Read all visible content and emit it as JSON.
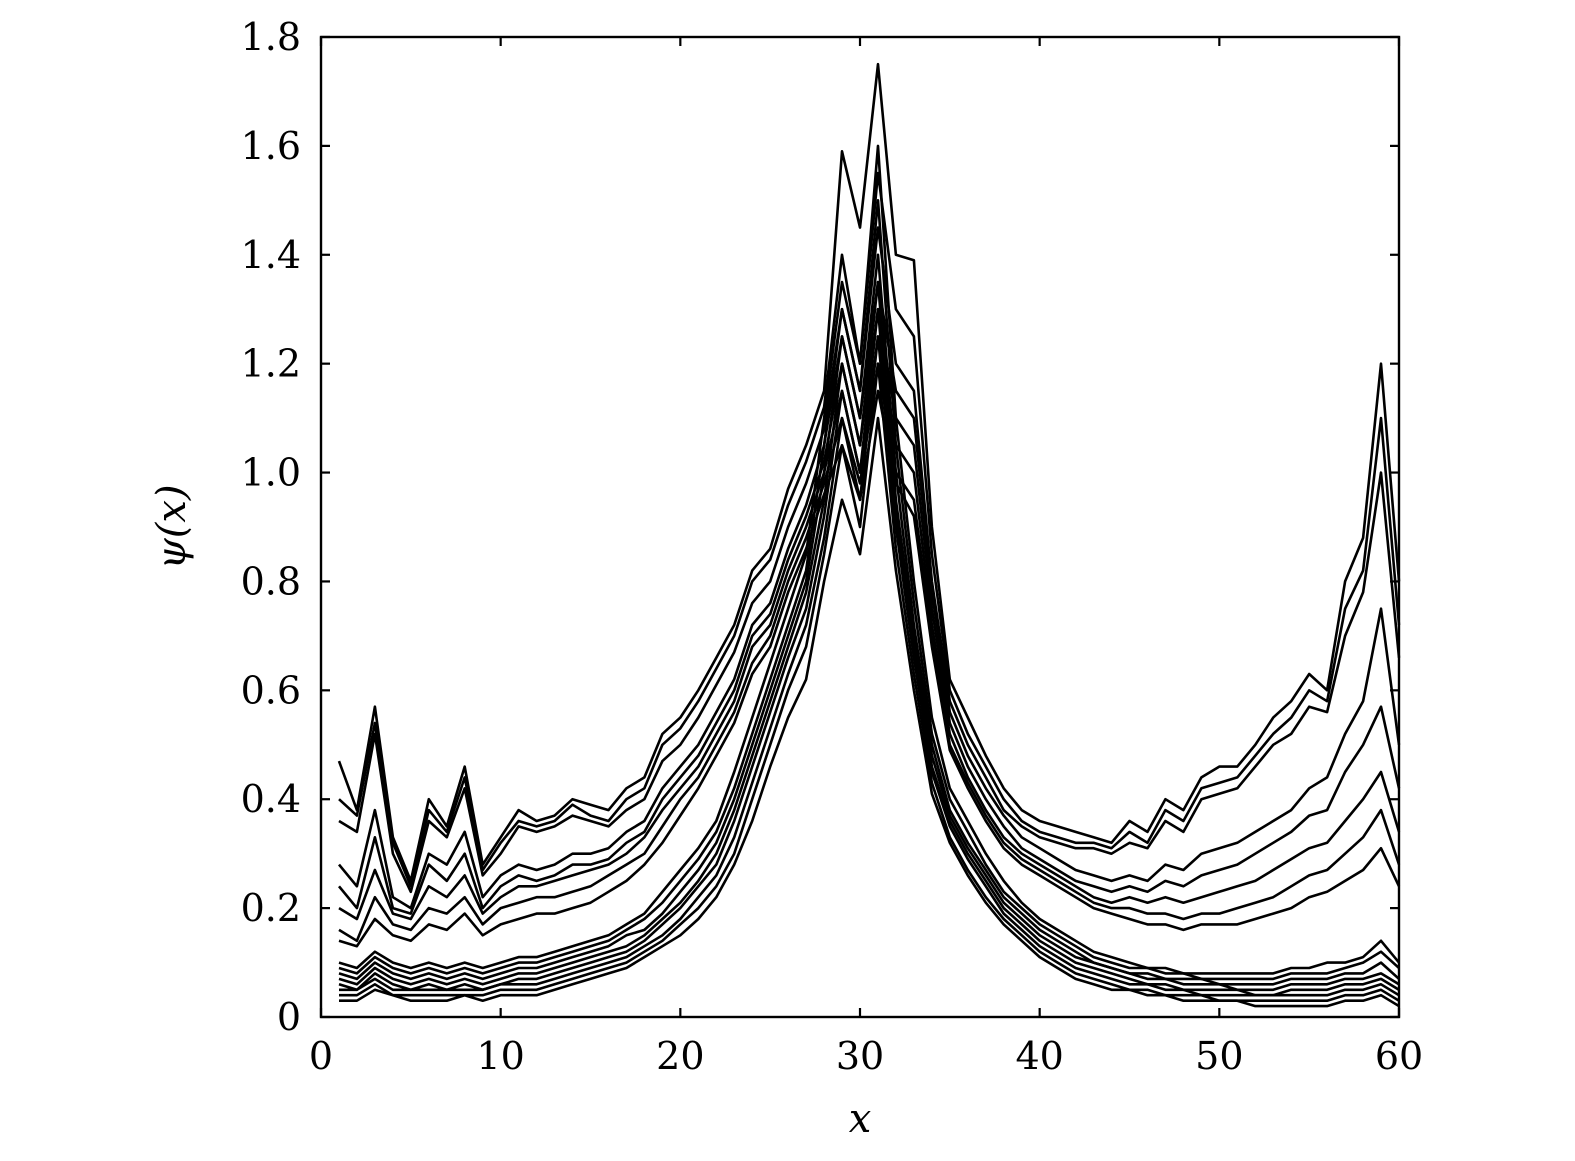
{
  "chart_data": {
    "type": "line",
    "title": "",
    "xlabel": "x",
    "ylabel": "ψ(x)",
    "xlim": [
      0,
      60
    ],
    "ylim": [
      0,
      1.8
    ],
    "xticks": [
      0,
      10,
      20,
      30,
      40,
      50,
      60
    ],
    "xtick_labels": [
      "0",
      "10",
      "20",
      "30",
      "40",
      "50",
      "60"
    ],
    "yticks": [
      0,
      0.2,
      0.4,
      0.6,
      0.8,
      1.0,
      1.2,
      1.4,
      1.6,
      1.8
    ],
    "ytick_labels": [
      "0",
      "0.2",
      "0.4",
      "0.6",
      "0.8",
      "1.0",
      "1.2",
      "1.4",
      "1.6",
      "1.8"
    ],
    "grid": false,
    "legend": "none",
    "line_color": "#000000",
    "x": [
      1,
      2,
      3,
      4,
      5,
      6,
      7,
      8,
      9,
      10,
      11,
      12,
      13,
      14,
      15,
      16,
      17,
      18,
      19,
      20,
      21,
      22,
      23,
      24,
      25,
      26,
      27,
      28,
      29,
      30,
      31,
      32,
      33,
      34,
      35,
      36,
      37,
      38,
      39,
      40,
      41,
      42,
      43,
      44,
      45,
      46,
      47,
      48,
      49,
      50,
      51,
      52,
      53,
      54,
      55,
      56,
      57,
      58,
      59,
      60
    ],
    "series": [
      {
        "values": [
          0.47,
          0.38,
          0.57,
          0.33,
          0.25,
          0.4,
          0.35,
          0.46,
          0.28,
          0.33,
          0.38,
          0.36,
          0.37,
          0.4,
          0.39,
          0.38,
          0.42,
          0.44,
          0.52,
          0.55,
          0.6,
          0.66,
          0.72,
          0.82,
          0.86,
          0.97,
          1.05,
          1.15,
          1.59,
          1.45,
          1.75,
          1.4,
          1.39,
          0.9,
          0.62,
          0.55,
          0.48,
          0.42,
          0.38,
          0.36,
          0.35,
          0.34,
          0.33,
          0.32,
          0.36,
          0.34,
          0.4,
          0.38,
          0.44,
          0.46,
          0.46,
          0.5,
          0.55,
          0.58,
          0.63,
          0.6,
          0.8,
          0.88,
          1.2,
          0.8
        ]
      },
      {
        "values": [
          0.4,
          0.37,
          0.54,
          0.32,
          0.24,
          0.38,
          0.34,
          0.44,
          0.27,
          0.32,
          0.36,
          0.35,
          0.36,
          0.39,
          0.37,
          0.36,
          0.4,
          0.42,
          0.5,
          0.53,
          0.58,
          0.64,
          0.7,
          0.8,
          0.84,
          0.94,
          1.02,
          1.12,
          1.4,
          1.2,
          1.55,
          1.3,
          1.25,
          0.85,
          0.6,
          0.52,
          0.46,
          0.4,
          0.36,
          0.34,
          0.33,
          0.32,
          0.32,
          0.31,
          0.34,
          0.32,
          0.38,
          0.36,
          0.42,
          0.43,
          0.44,
          0.48,
          0.52,
          0.55,
          0.6,
          0.58,
          0.75,
          0.82,
          1.1,
          0.72
        ]
      },
      {
        "values": [
          0.36,
          0.34,
          0.52,
          0.3,
          0.23,
          0.36,
          0.33,
          0.42,
          0.26,
          0.3,
          0.35,
          0.34,
          0.35,
          0.37,
          0.36,
          0.35,
          0.38,
          0.4,
          0.47,
          0.5,
          0.55,
          0.61,
          0.67,
          0.76,
          0.8,
          0.9,
          0.98,
          1.08,
          1.3,
          1.15,
          1.45,
          1.2,
          1.15,
          0.8,
          0.58,
          0.5,
          0.44,
          0.38,
          0.35,
          0.33,
          0.32,
          0.31,
          0.31,
          0.3,
          0.32,
          0.31,
          0.36,
          0.34,
          0.4,
          0.41,
          0.42,
          0.46,
          0.5,
          0.52,
          0.57,
          0.56,
          0.7,
          0.78,
          1.0,
          0.66
        ]
      },
      {
        "values": [
          0.28,
          0.24,
          0.38,
          0.22,
          0.2,
          0.3,
          0.28,
          0.34,
          0.22,
          0.26,
          0.28,
          0.27,
          0.28,
          0.3,
          0.3,
          0.31,
          0.34,
          0.36,
          0.42,
          0.46,
          0.5,
          0.56,
          0.62,
          0.72,
          0.76,
          0.86,
          0.94,
          1.05,
          1.25,
          1.1,
          1.35,
          1.15,
          1.1,
          0.78,
          0.56,
          0.48,
          0.42,
          0.37,
          0.33,
          0.31,
          0.29,
          0.27,
          0.26,
          0.25,
          0.26,
          0.25,
          0.28,
          0.27,
          0.3,
          0.31,
          0.32,
          0.34,
          0.36,
          0.38,
          0.42,
          0.44,
          0.52,
          0.58,
          0.75,
          0.5
        ]
      },
      {
        "values": [
          0.24,
          0.2,
          0.33,
          0.2,
          0.19,
          0.28,
          0.25,
          0.3,
          0.2,
          0.24,
          0.26,
          0.25,
          0.26,
          0.28,
          0.28,
          0.29,
          0.32,
          0.34,
          0.4,
          0.44,
          0.48,
          0.54,
          0.6,
          0.7,
          0.74,
          0.84,
          0.92,
          1.02,
          1.2,
          1.05,
          1.3,
          1.1,
          1.05,
          0.75,
          0.54,
          0.46,
          0.4,
          0.35,
          0.31,
          0.29,
          0.27,
          0.25,
          0.24,
          0.23,
          0.24,
          0.23,
          0.25,
          0.24,
          0.26,
          0.27,
          0.28,
          0.3,
          0.32,
          0.34,
          0.37,
          0.38,
          0.45,
          0.5,
          0.57,
          0.42
        ]
      },
      {
        "values": [
          0.2,
          0.18,
          0.27,
          0.19,
          0.18,
          0.24,
          0.22,
          0.26,
          0.19,
          0.22,
          0.24,
          0.24,
          0.25,
          0.26,
          0.27,
          0.28,
          0.3,
          0.33,
          0.38,
          0.42,
          0.46,
          0.52,
          0.58,
          0.68,
          0.72,
          0.82,
          0.9,
          1.0,
          1.15,
          1.0,
          1.25,
          1.05,
          1.0,
          0.72,
          0.52,
          0.44,
          0.38,
          0.33,
          0.3,
          0.28,
          0.26,
          0.24,
          0.22,
          0.21,
          0.22,
          0.21,
          0.22,
          0.21,
          0.22,
          0.23,
          0.24,
          0.25,
          0.27,
          0.29,
          0.31,
          0.32,
          0.36,
          0.4,
          0.45,
          0.34
        ]
      },
      {
        "values": [
          0.16,
          0.14,
          0.22,
          0.17,
          0.16,
          0.2,
          0.19,
          0.22,
          0.17,
          0.2,
          0.21,
          0.22,
          0.22,
          0.23,
          0.24,
          0.26,
          0.28,
          0.3,
          0.35,
          0.4,
          0.44,
          0.5,
          0.56,
          0.65,
          0.7,
          0.8,
          0.88,
          0.98,
          1.1,
          0.98,
          1.2,
          1.0,
          0.95,
          0.7,
          0.5,
          0.43,
          0.37,
          0.32,
          0.29,
          0.27,
          0.25,
          0.23,
          0.21,
          0.2,
          0.2,
          0.19,
          0.19,
          0.18,
          0.19,
          0.19,
          0.2,
          0.21,
          0.22,
          0.24,
          0.26,
          0.27,
          0.3,
          0.33,
          0.38,
          0.28
        ]
      },
      {
        "values": [
          0.14,
          0.13,
          0.18,
          0.15,
          0.14,
          0.17,
          0.16,
          0.19,
          0.15,
          0.17,
          0.18,
          0.19,
          0.19,
          0.2,
          0.21,
          0.23,
          0.25,
          0.28,
          0.32,
          0.37,
          0.42,
          0.48,
          0.54,
          0.63,
          0.68,
          0.78,
          0.86,
          0.96,
          1.05,
          0.95,
          1.15,
          0.98,
          0.92,
          0.68,
          0.49,
          0.42,
          0.36,
          0.31,
          0.28,
          0.26,
          0.24,
          0.22,
          0.2,
          0.19,
          0.18,
          0.17,
          0.17,
          0.16,
          0.17,
          0.17,
          0.17,
          0.18,
          0.19,
          0.2,
          0.22,
          0.23,
          0.25,
          0.27,
          0.31,
          0.24
        ]
      },
      {
        "values": [
          0.1,
          0.09,
          0.12,
          0.1,
          0.09,
          0.1,
          0.09,
          0.1,
          0.09,
          0.1,
          0.11,
          0.11,
          0.12,
          0.13,
          0.14,
          0.15,
          0.17,
          0.19,
          0.23,
          0.27,
          0.31,
          0.36,
          0.45,
          0.55,
          0.65,
          0.75,
          0.85,
          1.1,
          1.35,
          1.2,
          1.6,
          1.1,
          0.8,
          0.55,
          0.42,
          0.36,
          0.3,
          0.25,
          0.21,
          0.18,
          0.16,
          0.14,
          0.12,
          0.11,
          0.1,
          0.09,
          0.09,
          0.08,
          0.08,
          0.08,
          0.08,
          0.08,
          0.08,
          0.09,
          0.09,
          0.1,
          0.1,
          0.11,
          0.14,
          0.1
        ]
      },
      {
        "values": [
          0.09,
          0.08,
          0.11,
          0.09,
          0.08,
          0.09,
          0.08,
          0.09,
          0.08,
          0.09,
          0.1,
          0.1,
          0.11,
          0.12,
          0.13,
          0.14,
          0.16,
          0.18,
          0.21,
          0.25,
          0.29,
          0.34,
          0.42,
          0.52,
          0.62,
          0.72,
          0.82,
          1.05,
          1.3,
          1.15,
          1.5,
          1.05,
          0.76,
          0.52,
          0.4,
          0.34,
          0.28,
          0.23,
          0.2,
          0.17,
          0.15,
          0.13,
          0.11,
          0.1,
          0.09,
          0.09,
          0.08,
          0.08,
          0.07,
          0.07,
          0.07,
          0.07,
          0.07,
          0.08,
          0.08,
          0.08,
          0.09,
          0.1,
          0.12,
          0.09
        ]
      },
      {
        "values": [
          0.08,
          0.07,
          0.1,
          0.08,
          0.07,
          0.08,
          0.07,
          0.08,
          0.07,
          0.08,
          0.09,
          0.09,
          0.1,
          0.11,
          0.12,
          0.13,
          0.15,
          0.16,
          0.19,
          0.23,
          0.27,
          0.32,
          0.4,
          0.5,
          0.6,
          0.7,
          0.8,
          1.0,
          1.25,
          1.1,
          1.4,
          1.0,
          0.72,
          0.5,
          0.38,
          0.32,
          0.27,
          0.22,
          0.19,
          0.16,
          0.14,
          0.12,
          0.1,
          0.09,
          0.08,
          0.08,
          0.07,
          0.07,
          0.07,
          0.06,
          0.06,
          0.06,
          0.06,
          0.07,
          0.07,
          0.07,
          0.08,
          0.08,
          0.1,
          0.07
        ]
      },
      {
        "values": [
          0.07,
          0.06,
          0.09,
          0.07,
          0.06,
          0.07,
          0.06,
          0.07,
          0.06,
          0.07,
          0.08,
          0.08,
          0.09,
          0.1,
          0.11,
          0.12,
          0.13,
          0.15,
          0.18,
          0.21,
          0.25,
          0.3,
          0.38,
          0.48,
          0.58,
          0.68,
          0.78,
          0.95,
          1.2,
          1.05,
          1.35,
          0.95,
          0.7,
          0.48,
          0.37,
          0.31,
          0.26,
          0.21,
          0.18,
          0.15,
          0.13,
          0.11,
          0.1,
          0.09,
          0.08,
          0.07,
          0.07,
          0.06,
          0.06,
          0.06,
          0.05,
          0.05,
          0.05,
          0.06,
          0.06,
          0.06,
          0.07,
          0.07,
          0.08,
          0.06
        ]
      },
      {
        "values": [
          0.06,
          0.05,
          0.08,
          0.06,
          0.05,
          0.06,
          0.05,
          0.06,
          0.05,
          0.06,
          0.07,
          0.07,
          0.08,
          0.09,
          0.1,
          0.11,
          0.12,
          0.14,
          0.17,
          0.2,
          0.24,
          0.28,
          0.36,
          0.46,
          0.56,
          0.66,
          0.75,
          0.92,
          1.15,
          1.0,
          1.3,
          0.92,
          0.68,
          0.46,
          0.36,
          0.3,
          0.25,
          0.2,
          0.17,
          0.14,
          0.12,
          0.1,
          0.09,
          0.08,
          0.07,
          0.06,
          0.06,
          0.05,
          0.05,
          0.05,
          0.05,
          0.04,
          0.04,
          0.05,
          0.05,
          0.05,
          0.06,
          0.06,
          0.07,
          0.05
        ]
      },
      {
        "values": [
          0.05,
          0.05,
          0.07,
          0.05,
          0.05,
          0.05,
          0.05,
          0.05,
          0.05,
          0.06,
          0.06,
          0.06,
          0.07,
          0.08,
          0.09,
          0.1,
          0.11,
          0.13,
          0.15,
          0.18,
          0.22,
          0.26,
          0.33,
          0.43,
          0.53,
          0.63,
          0.72,
          0.88,
          1.1,
          0.95,
          1.25,
          0.9,
          0.66,
          0.45,
          0.35,
          0.29,
          0.24,
          0.19,
          0.16,
          0.13,
          0.11,
          0.09,
          0.08,
          0.07,
          0.06,
          0.06,
          0.05,
          0.05,
          0.04,
          0.04,
          0.04,
          0.04,
          0.04,
          0.04,
          0.04,
          0.04,
          0.05,
          0.05,
          0.06,
          0.04
        ]
      },
      {
        "values": [
          0.04,
          0.04,
          0.06,
          0.04,
          0.04,
          0.04,
          0.04,
          0.04,
          0.04,
          0.05,
          0.05,
          0.05,
          0.06,
          0.07,
          0.08,
          0.09,
          0.1,
          0.12,
          0.14,
          0.17,
          0.2,
          0.24,
          0.3,
          0.4,
          0.5,
          0.6,
          0.68,
          0.85,
          1.05,
          0.9,
          1.2,
          0.86,
          0.63,
          0.43,
          0.33,
          0.27,
          0.22,
          0.18,
          0.15,
          0.12,
          0.1,
          0.08,
          0.07,
          0.06,
          0.05,
          0.05,
          0.04,
          0.04,
          0.04,
          0.03,
          0.03,
          0.03,
          0.03,
          0.03,
          0.03,
          0.03,
          0.04,
          0.04,
          0.05,
          0.03
        ]
      },
      {
        "values": [
          0.03,
          0.03,
          0.05,
          0.04,
          0.03,
          0.03,
          0.03,
          0.04,
          0.03,
          0.04,
          0.04,
          0.04,
          0.05,
          0.06,
          0.07,
          0.08,
          0.09,
          0.11,
          0.13,
          0.15,
          0.18,
          0.22,
          0.28,
          0.36,
          0.46,
          0.55,
          0.62,
          0.8,
          0.95,
          0.85,
          1.1,
          0.82,
          0.6,
          0.41,
          0.32,
          0.26,
          0.21,
          0.17,
          0.14,
          0.11,
          0.09,
          0.07,
          0.06,
          0.05,
          0.05,
          0.04,
          0.04,
          0.03,
          0.03,
          0.03,
          0.03,
          0.02,
          0.02,
          0.02,
          0.02,
          0.02,
          0.03,
          0.03,
          0.04,
          0.02
        ]
      }
    ]
  }
}
